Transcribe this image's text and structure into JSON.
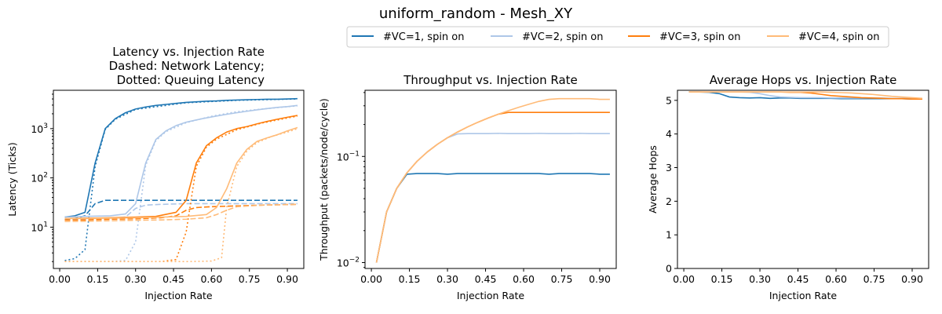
{
  "suptitle": "uniform_random - Mesh_XY",
  "legend": {
    "placement": "top-center",
    "entries": [
      {
        "label": "#VC=1, spin on",
        "color": "#1f77b4"
      },
      {
        "label": "#VC=2, spin on",
        "color": "#aec7e8"
      },
      {
        "label": "#VC=3, spin on",
        "color": "#ff7f0e"
      },
      {
        "label": "#VC=4, spin on",
        "color": "#ffbb78"
      }
    ]
  },
  "chart_data": [
    {
      "type": "line",
      "title_lines": [
        "Latency vs. Injection Rate",
        "Dashed: Network Latency;",
        "Dotted: Queuing Latency"
      ],
      "xlabel": "Injection Rate",
      "ylabel": "Latency (Ticks)",
      "yscale": "log",
      "xlim": [
        -0.025,
        0.965
      ],
      "ylim": [
        1.45,
        6000
      ],
      "xticks": [
        "0.00",
        "0.15",
        "0.30",
        "0.45",
        "0.60",
        "0.75",
        "0.90"
      ],
      "yticks": [
        {
          "value": 10,
          "base": "10",
          "exp": "1"
        },
        {
          "value": 100,
          "base": "10",
          "exp": "2"
        },
        {
          "value": 1000,
          "base": "10",
          "exp": "3"
        }
      ],
      "grid": false,
      "series": [
        {
          "name": "#VC=1, spin on",
          "color": "#1f77b4",
          "style": "solid",
          "x": [
            0.02,
            0.06,
            0.1,
            0.14,
            0.18,
            0.22,
            0.26,
            0.3,
            0.34,
            0.38,
            0.42,
            0.46,
            0.5,
            0.54,
            0.58,
            0.62,
            0.66,
            0.7,
            0.74,
            0.78,
            0.82,
            0.86,
            0.9,
            0.94
          ],
          "y": [
            16,
            17,
            20,
            200,
            1000,
            1600,
            2100,
            2500,
            2750,
            2950,
            3100,
            3250,
            3400,
            3500,
            3600,
            3650,
            3750,
            3800,
            3850,
            3900,
            3950,
            3950,
            4000,
            4050
          ]
        },
        {
          "name": "#VC=1, spin on",
          "color": "#1f77b4",
          "style": "dashed",
          "x": [
            0.02,
            0.06,
            0.1,
            0.14,
            0.18,
            0.22,
            0.26,
            0.3,
            0.4,
            0.5,
            0.6,
            0.7,
            0.8,
            0.94
          ],
          "y": [
            14,
            15,
            17,
            30,
            35,
            35,
            35,
            35,
            35,
            35,
            35,
            35,
            35,
            35
          ]
        },
        {
          "name": "#VC=1, spin on",
          "color": "#1f77b4",
          "style": "dotted",
          "x": [
            0.02,
            0.06,
            0.1,
            0.14,
            0.18,
            0.22,
            0.3,
            0.5,
            0.7,
            0.94
          ],
          "y": [
            2.1,
            2.3,
            3.5,
            170,
            960,
            1550,
            2450,
            3350,
            3750,
            4000
          ]
        },
        {
          "name": "#VC=2, spin on",
          "color": "#aec7e8",
          "style": "solid",
          "x": [
            0.02,
            0.1,
            0.2,
            0.26,
            0.3,
            0.34,
            0.38,
            0.42,
            0.46,
            0.5,
            0.54,
            0.58,
            0.62,
            0.66,
            0.7,
            0.74,
            0.78,
            0.82,
            0.86,
            0.9,
            0.94
          ],
          "y": [
            16,
            16.5,
            17,
            18.5,
            30,
            200,
            600,
            900,
            1150,
            1350,
            1500,
            1650,
            1800,
            1950,
            2100,
            2250,
            2400,
            2550,
            2700,
            2800,
            2950
          ]
        },
        {
          "name": "#VC=2, spin on",
          "color": "#aec7e8",
          "style": "dashed",
          "x": [
            0.02,
            0.1,
            0.2,
            0.26,
            0.3,
            0.34,
            0.4,
            0.5,
            0.6,
            0.7,
            0.8,
            0.94
          ],
          "y": [
            14,
            14.5,
            15,
            16,
            24,
            28,
            29,
            30,
            30,
            30,
            30,
            30
          ]
        },
        {
          "name": "#VC=2, spin on",
          "color": "#aec7e8",
          "style": "dotted",
          "x": [
            0.02,
            0.1,
            0.2,
            0.26,
            0.3,
            0.34,
            0.38,
            0.42,
            0.5,
            0.6,
            0.7,
            0.8,
            0.94
          ],
          "y": [
            2,
            2,
            2,
            2.1,
            5,
            180,
            570,
            870,
            1320,
            1780,
            2200,
            2500,
            2900
          ]
        },
        {
          "name": "#VC=3, spin on",
          "color": "#ff7f0e",
          "style": "solid",
          "x": [
            0.02,
            0.1,
            0.2,
            0.3,
            0.38,
            0.46,
            0.5,
            0.54,
            0.58,
            0.62,
            0.66,
            0.7,
            0.74,
            0.78,
            0.82,
            0.86,
            0.9,
            0.94
          ],
          "y": [
            15,
            15.2,
            15.5,
            16,
            16.5,
            20,
            35,
            200,
            450,
            650,
            850,
            1000,
            1100,
            1250,
            1400,
            1550,
            1700,
            1850
          ]
        },
        {
          "name": "#VC=3, spin on",
          "color": "#ff7f0e",
          "style": "dashed",
          "x": [
            0.02,
            0.1,
            0.2,
            0.3,
            0.4,
            0.46,
            0.5,
            0.54,
            0.6,
            0.7,
            0.8,
            0.94
          ],
          "y": [
            14,
            14,
            14.5,
            14.8,
            15.5,
            17,
            22,
            25,
            26,
            27,
            28,
            29
          ]
        },
        {
          "name": "#VC=3, spin on",
          "color": "#ff7f0e",
          "style": "dotted",
          "x": [
            0.02,
            0.1,
            0.2,
            0.3,
            0.4,
            0.46,
            0.5,
            0.54,
            0.58,
            0.62,
            0.7,
            0.8,
            0.94
          ],
          "y": [
            2,
            2,
            2,
            2,
            2,
            2.2,
            8,
            170,
            420,
            610,
            950,
            1300,
            1800
          ]
        },
        {
          "name": "#VC=4, spin on",
          "color": "#ffbb78",
          "style": "solid",
          "x": [
            0.02,
            0.1,
            0.2,
            0.3,
            0.4,
            0.5,
            0.58,
            0.62,
            0.66,
            0.7,
            0.74,
            0.78,
            0.82,
            0.86,
            0.9,
            0.94
          ],
          "y": [
            15,
            15,
            15.2,
            15.5,
            16,
            16.5,
            18,
            25,
            60,
            200,
            380,
            550,
            650,
            750,
            900,
            1050
          ]
        },
        {
          "name": "#VC=4, spin on",
          "color": "#ffbb78",
          "style": "dashed",
          "x": [
            0.02,
            0.1,
            0.2,
            0.3,
            0.4,
            0.5,
            0.58,
            0.62,
            0.66,
            0.7,
            0.8,
            0.94
          ],
          "y": [
            13,
            13.2,
            13.5,
            13.8,
            14,
            14.5,
            15.5,
            18,
            22,
            26,
            28,
            29
          ]
        },
        {
          "name": "#VC=4, spin on",
          "color": "#ffbb78",
          "style": "dotted",
          "x": [
            0.02,
            0.1,
            0.2,
            0.3,
            0.4,
            0.5,
            0.6,
            0.64,
            0.66,
            0.7,
            0.74,
            0.78,
            0.84,
            0.9,
            0.94
          ],
          "y": [
            2,
            2,
            2,
            2,
            2,
            2,
            2.05,
            2.4,
            25,
            170,
            350,
            520,
            700,
            850,
            1000
          ]
        }
      ]
    },
    {
      "type": "line",
      "title_lines": [
        "Throughput vs. Injection Rate"
      ],
      "xlabel": "Injection Rate",
      "ylabel": "Throughput (packets/node/cycle)",
      "yscale": "log",
      "xlim": [
        -0.025,
        0.965
      ],
      "ylim": [
        0.0088,
        0.42
      ],
      "xticks": [
        "0.00",
        "0.15",
        "0.30",
        "0.45",
        "0.60",
        "0.75",
        "0.90"
      ],
      "yticks": [
        {
          "value": 0.01,
          "base": "10",
          "exp": "−2"
        },
        {
          "value": 0.1,
          "base": "10",
          "exp": "−1"
        }
      ],
      "grid": false,
      "series": [
        {
          "name": "#VC=1, spin on",
          "color": "#1f77b4",
          "style": "solid",
          "x": [
            0.02,
            0.06,
            0.1,
            0.14,
            0.18,
            0.22,
            0.26,
            0.3,
            0.34,
            0.38,
            0.42,
            0.46,
            0.5,
            0.54,
            0.58,
            0.62,
            0.66,
            0.7,
            0.74,
            0.78,
            0.82,
            0.86,
            0.9,
            0.94
          ],
          "y": [
            0.01,
            0.03,
            0.05,
            0.068,
            0.069,
            0.069,
            0.069,
            0.068,
            0.069,
            0.069,
            0.069,
            0.069,
            0.069,
            0.069,
            0.069,
            0.069,
            0.069,
            0.068,
            0.069,
            0.069,
            0.069,
            0.069,
            0.068,
            0.068
          ]
        },
        {
          "name": "#VC=2, spin on",
          "color": "#aec7e8",
          "style": "solid",
          "x": [
            0.02,
            0.06,
            0.1,
            0.14,
            0.18,
            0.22,
            0.26,
            0.3,
            0.34,
            0.38,
            0.42,
            0.46,
            0.5,
            0.54,
            0.58,
            0.62,
            0.66,
            0.7,
            0.74,
            0.78,
            0.82,
            0.86,
            0.9,
            0.94
          ],
          "y": [
            0.01,
            0.03,
            0.05,
            0.07,
            0.09,
            0.11,
            0.13,
            0.15,
            0.163,
            0.164,
            0.164,
            0.164,
            0.165,
            0.164,
            0.164,
            0.164,
            0.165,
            0.164,
            0.164,
            0.164,
            0.165,
            0.164,
            0.164,
            0.164
          ]
        },
        {
          "name": "#VC=3, spin on",
          "color": "#ff7f0e",
          "style": "solid",
          "x": [
            0.02,
            0.06,
            0.1,
            0.14,
            0.18,
            0.22,
            0.26,
            0.3,
            0.34,
            0.38,
            0.42,
            0.46,
            0.5,
            0.54,
            0.58,
            0.62,
            0.66,
            0.7,
            0.74,
            0.78,
            0.82,
            0.86,
            0.9,
            0.94
          ],
          "y": [
            0.01,
            0.03,
            0.05,
            0.07,
            0.09,
            0.11,
            0.13,
            0.15,
            0.17,
            0.19,
            0.21,
            0.23,
            0.25,
            0.26,
            0.26,
            0.26,
            0.26,
            0.26,
            0.26,
            0.26,
            0.26,
            0.26,
            0.26,
            0.26
          ]
        },
        {
          "name": "#VC=4, spin on",
          "color": "#ffbb78",
          "style": "solid",
          "x": [
            0.02,
            0.06,
            0.1,
            0.14,
            0.18,
            0.22,
            0.26,
            0.3,
            0.34,
            0.38,
            0.42,
            0.46,
            0.5,
            0.54,
            0.58,
            0.62,
            0.66,
            0.7,
            0.74,
            0.78,
            0.82,
            0.86,
            0.9,
            0.94
          ],
          "y": [
            0.01,
            0.03,
            0.05,
            0.07,
            0.09,
            0.11,
            0.13,
            0.15,
            0.17,
            0.19,
            0.21,
            0.23,
            0.25,
            0.27,
            0.29,
            0.31,
            0.33,
            0.345,
            0.35,
            0.35,
            0.35,
            0.35,
            0.345,
            0.345
          ]
        }
      ]
    },
    {
      "type": "line",
      "title_lines": [
        "Average Hops vs. Injection Rate"
      ],
      "xlabel": "Injection Rate",
      "ylabel": "Average Hops",
      "yscale": "linear",
      "xlim": [
        -0.025,
        0.965
      ],
      "ylim": [
        0,
        5.3
      ],
      "xticks": [
        "0.00",
        "0.15",
        "0.30",
        "0.45",
        "0.60",
        "0.75",
        "0.90"
      ],
      "yticks": [
        {
          "value": 0,
          "label": "0"
        },
        {
          "value": 1,
          "label": "1"
        },
        {
          "value": 2,
          "label": "2"
        },
        {
          "value": 3,
          "label": "3"
        },
        {
          "value": 4,
          "label": "4"
        },
        {
          "value": 5,
          "label": "5"
        }
      ],
      "grid": false,
      "series": [
        {
          "name": "#VC=1, spin on",
          "color": "#1f77b4",
          "style": "solid",
          "x": [
            0.02,
            0.06,
            0.1,
            0.14,
            0.18,
            0.22,
            0.26,
            0.3,
            0.34,
            0.38,
            0.42,
            0.46,
            0.5,
            0.54,
            0.58,
            0.62,
            0.66,
            0.7,
            0.74,
            0.78,
            0.82,
            0.86,
            0.9,
            0.94
          ],
          "y": [
            5.25,
            5.25,
            5.24,
            5.2,
            5.1,
            5.08,
            5.07,
            5.08,
            5.06,
            5.07,
            5.07,
            5.06,
            5.06,
            5.06,
            5.06,
            5.05,
            5.05,
            5.05,
            5.05,
            5.05,
            5.05,
            5.05,
            5.04,
            5.04
          ]
        },
        {
          "name": "#VC=2, spin on",
          "color": "#aec7e8",
          "style": "solid",
          "x": [
            0.02,
            0.06,
            0.1,
            0.14,
            0.18,
            0.22,
            0.26,
            0.3,
            0.34,
            0.38,
            0.42,
            0.46,
            0.5,
            0.54,
            0.58,
            0.62,
            0.66,
            0.7,
            0.74,
            0.78,
            0.82,
            0.86,
            0.9,
            0.94
          ],
          "y": [
            5.25,
            5.25,
            5.25,
            5.25,
            5.25,
            5.25,
            5.24,
            5.2,
            5.14,
            5.1,
            5.09,
            5.08,
            5.08,
            5.08,
            5.07,
            5.07,
            5.07,
            5.07,
            5.07,
            5.07,
            5.06,
            5.06,
            5.06,
            5.05
          ]
        },
        {
          "name": "#VC=3, spin on",
          "color": "#ff7f0e",
          "style": "solid",
          "x": [
            0.02,
            0.06,
            0.1,
            0.14,
            0.18,
            0.22,
            0.26,
            0.3,
            0.34,
            0.38,
            0.42,
            0.46,
            0.5,
            0.54,
            0.58,
            0.62,
            0.66,
            0.7,
            0.74,
            0.78,
            0.82,
            0.86,
            0.9,
            0.94
          ],
          "y": [
            5.25,
            5.25,
            5.25,
            5.25,
            5.25,
            5.25,
            5.25,
            5.25,
            5.25,
            5.25,
            5.24,
            5.24,
            5.22,
            5.18,
            5.14,
            5.12,
            5.1,
            5.08,
            5.07,
            5.06,
            5.05,
            5.05,
            5.04,
            5.04
          ]
        },
        {
          "name": "#VC=4, spin on",
          "color": "#ffbb78",
          "style": "solid",
          "x": [
            0.02,
            0.06,
            0.1,
            0.14,
            0.18,
            0.22,
            0.26,
            0.3,
            0.34,
            0.38,
            0.42,
            0.46,
            0.5,
            0.54,
            0.58,
            0.62,
            0.66,
            0.7,
            0.74,
            0.78,
            0.82,
            0.86,
            0.9,
            0.94
          ],
          "y": [
            5.25,
            5.25,
            5.25,
            5.25,
            5.25,
            5.25,
            5.25,
            5.25,
            5.25,
            5.25,
            5.25,
            5.25,
            5.25,
            5.25,
            5.24,
            5.23,
            5.22,
            5.2,
            5.18,
            5.15,
            5.12,
            5.1,
            5.08,
            5.06
          ]
        }
      ]
    }
  ]
}
